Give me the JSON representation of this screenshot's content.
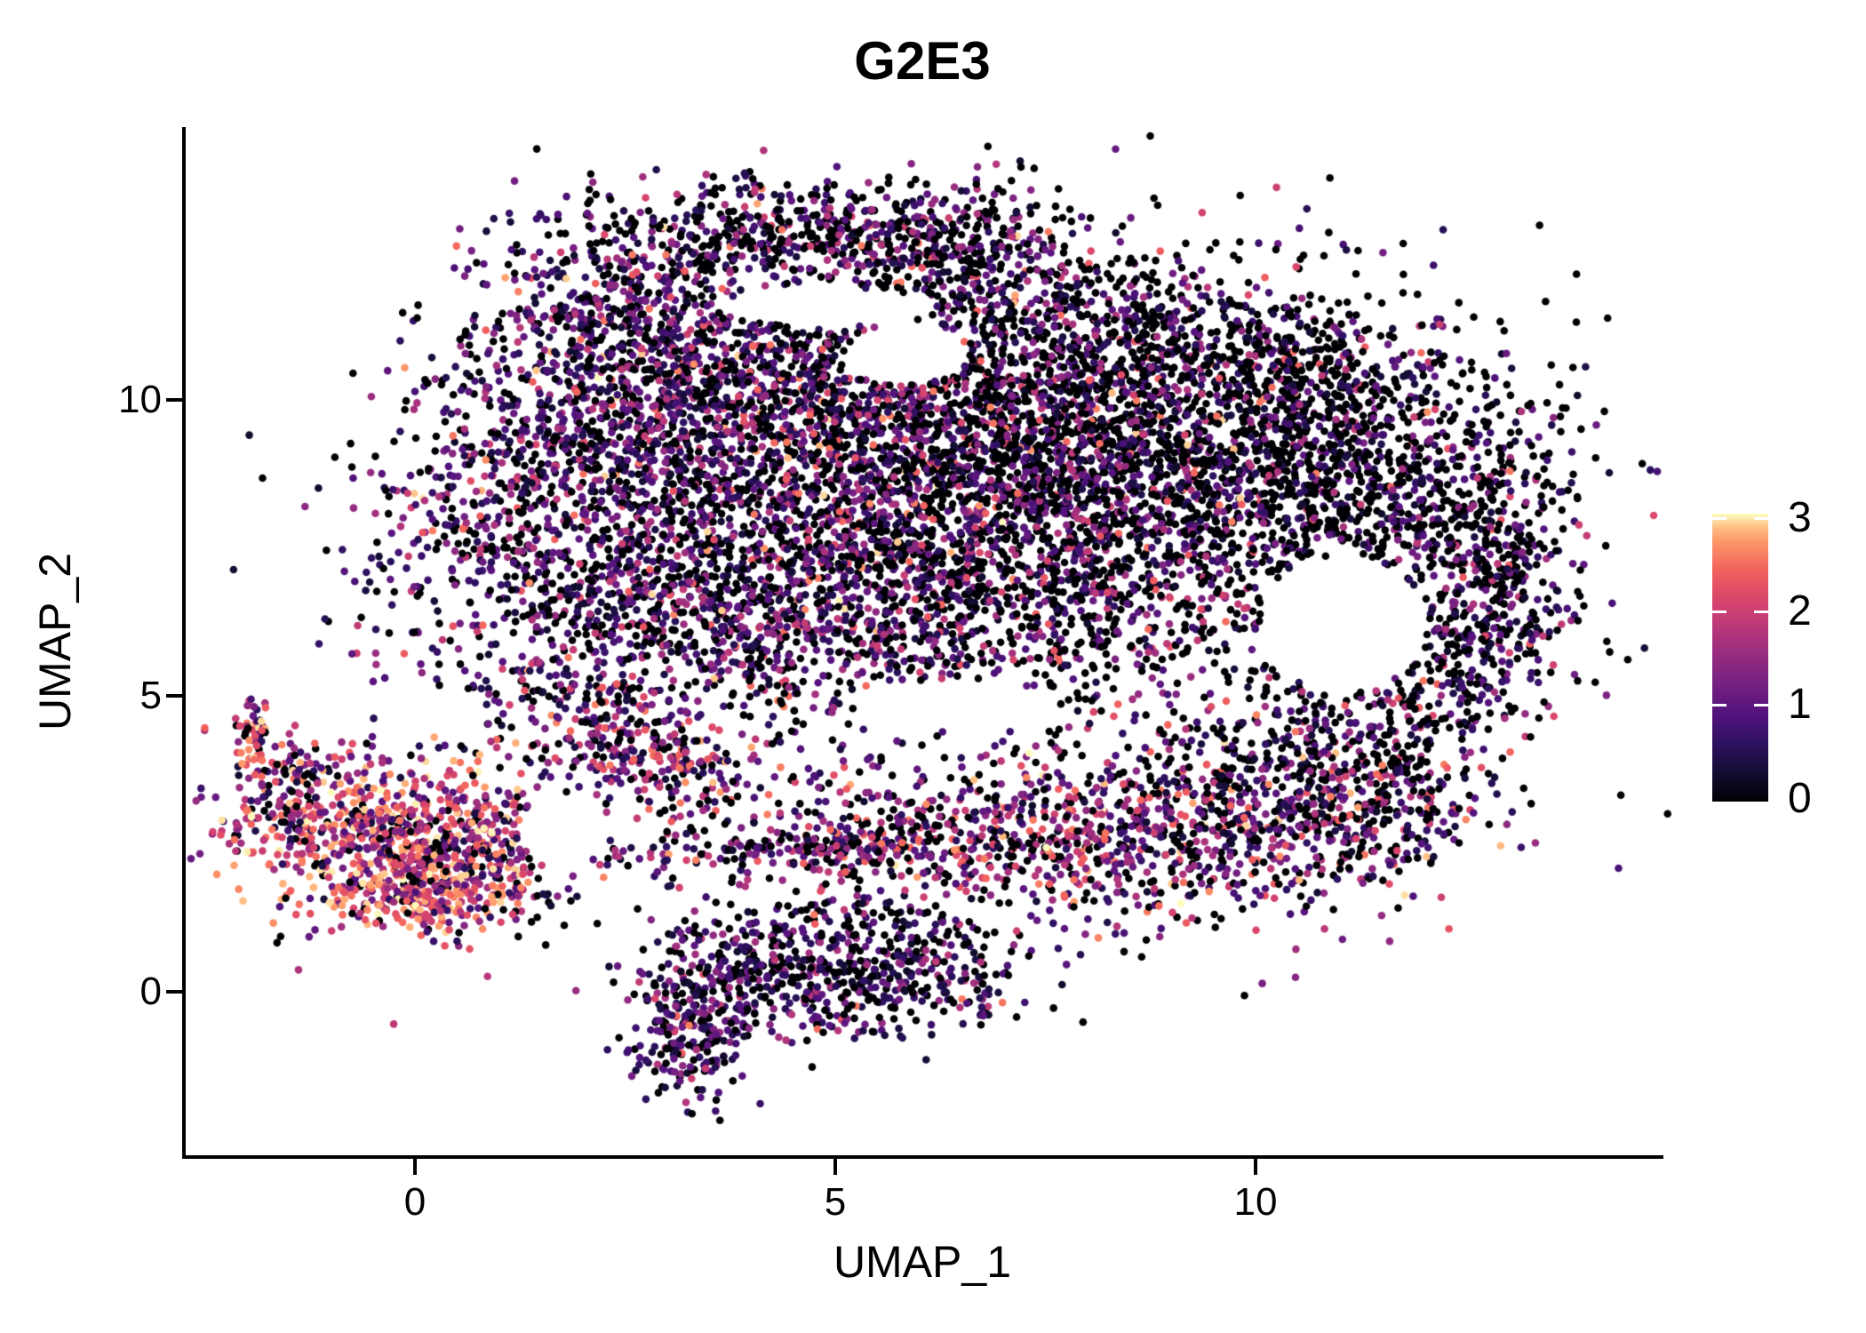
{
  "title": "G2E3",
  "axes": {
    "x": {
      "label": "UMAP_1",
      "tick_labels": [
        "0",
        "5",
        "10"
      ]
    },
    "y": {
      "label": "UMAP_2",
      "tick_labels": [
        "0",
        "5",
        "10"
      ]
    }
  },
  "colorbar": {
    "labels_top_to_bottom": [
      "3",
      "2",
      "1",
      "0"
    ],
    "min_color": "#000004",
    "max_color": "#fcfdbf"
  },
  "chart_data": {
    "type": "scatter",
    "title": "G2E3",
    "xlabel": "UMAP_1",
    "ylabel": "UMAP_2",
    "xlim": [
      -2.75,
      14.85
    ],
    "ylim": [
      -2.8,
      14.6
    ],
    "x_ticks": [
      0,
      5,
      10
    ],
    "y_ticks": [
      0,
      5,
      10
    ],
    "grid": false,
    "legend": "colorbar-right",
    "color_scale": {
      "name": "magma",
      "domain": [
        0,
        3
      ],
      "stops": [
        [
          0.0,
          "#000004"
        ],
        [
          0.1,
          "#120d31"
        ],
        [
          0.2,
          "#2c1160"
        ],
        [
          0.3,
          "#51127c"
        ],
        [
          0.4,
          "#721f81"
        ],
        [
          0.5,
          "#932b80"
        ],
        [
          0.6,
          "#b73779"
        ],
        [
          0.7,
          "#d8456c"
        ],
        [
          0.8,
          "#f1605d"
        ],
        [
          0.9,
          "#fd9567"
        ],
        [
          0.95,
          "#febb81"
        ],
        [
          1.0,
          "#fcfdbf"
        ]
      ]
    },
    "point_radius_px": 4.3,
    "seed": 42,
    "n_points_approx": 14900,
    "value_buckets": [
      {
        "base": 0.0,
        "span": 0.0
      },
      {
        "base": 0.25,
        "span": 0.8
      },
      {
        "base": 1.05,
        "span": 0.85
      },
      {
        "base": 1.9,
        "span": 0.7
      },
      {
        "base": 2.6,
        "span": 0.4
      }
    ],
    "profiles": {
      "dark": [
        0.58,
        0.28,
        0.11,
        0.03,
        0.0
      ],
      "darkmix": [
        0.5,
        0.28,
        0.16,
        0.05,
        0.01
      ],
      "mixed": [
        0.44,
        0.3,
        0.19,
        0.06,
        0.01
      ],
      "purple": [
        0.33,
        0.41,
        0.2,
        0.05,
        0.01
      ],
      "darkpurple": [
        0.4,
        0.42,
        0.15,
        0.03,
        0.0
      ],
      "bandmix": [
        0.27,
        0.26,
        0.28,
        0.16,
        0.03
      ],
      "warm": [
        0.1,
        0.17,
        0.3,
        0.28,
        0.15
      ],
      "hot": [
        0.05,
        0.1,
        0.22,
        0.33,
        0.3
      ]
    },
    "clusters": [
      {
        "cx": 1.8,
        "cy": 8.6,
        "sx": 1.15,
        "sy": 1.4,
        "n": 950,
        "p": "purple"
      },
      {
        "cx": 3.4,
        "cy": 10.5,
        "sx": 1.2,
        "sy": 0.85,
        "n": 650,
        "p": "purple"
      },
      {
        "cx": 4.8,
        "cy": 8.0,
        "sx": 1.45,
        "sy": 1.3,
        "n": 1100,
        "p": "mixed"
      },
      {
        "cx": 5.8,
        "cy": 9.9,
        "sx": 1.5,
        "sy": 1.0,
        "n": 750,
        "p": "mixed"
      },
      {
        "cx": 7.6,
        "cy": 8.9,
        "sx": 1.45,
        "sy": 1.25,
        "n": 1300,
        "p": "darkmix"
      },
      {
        "cx": 9.6,
        "cy": 8.6,
        "sx": 1.25,
        "sy": 1.3,
        "n": 900,
        "p": "dark"
      },
      {
        "cx": 11.4,
        "cy": 8.8,
        "sx": 1.1,
        "sy": 1.2,
        "n": 650,
        "p": "dark"
      },
      {
        "cx": 12.9,
        "cy": 7.0,
        "sx": 0.5,
        "sy": 1.3,
        "n": 380,
        "p": "dark"
      },
      {
        "cx": 4.6,
        "cy": 12.9,
        "sx": 1.5,
        "sy": 0.45,
        "n": 520,
        "p": "darkmix"
      },
      {
        "cx": 2.6,
        "cy": 11.6,
        "sx": 0.8,
        "sy": 0.6,
        "n": 280,
        "p": "purple"
      },
      {
        "cx": 6.4,
        "cy": 12.3,
        "sx": 0.8,
        "sy": 0.5,
        "n": 280,
        "p": "darkmix"
      },
      {
        "cx": 8.0,
        "cy": 11.2,
        "sx": 1.1,
        "sy": 0.65,
        "n": 380,
        "p": "dark"
      },
      {
        "cx": 10.5,
        "cy": 10.6,
        "sx": 0.8,
        "sy": 0.55,
        "n": 240,
        "p": "dark"
      },
      {
        "cx": 3.0,
        "cy": 6.3,
        "sx": 1.6,
        "sy": 0.7,
        "n": 500,
        "p": "purple"
      },
      {
        "cx": 7.0,
        "cy": 6.3,
        "sx": 1.6,
        "sy": 0.8,
        "n": 550,
        "p": "darkmix"
      },
      {
        "cx": 11.9,
        "cy": 5.6,
        "sx": 0.9,
        "sy": 0.9,
        "n": 320,
        "p": "dark"
      },
      {
        "cx": 2.9,
        "cy": 3.9,
        "sx": 0.9,
        "sy": 0.4,
        "n": 200,
        "p": "bandmix",
        "rot": -0.45
      },
      {
        "cx": 4.6,
        "cy": 2.35,
        "sx": 1.6,
        "sy": 0.22,
        "n": 260,
        "p": "bandmix"
      },
      {
        "cx": 6.9,
        "cy": 2.7,
        "sx": 1.2,
        "sy": 0.6,
        "n": 350,
        "p": "bandmix"
      },
      {
        "cx": 9.2,
        "cy": 2.5,
        "sx": 1.2,
        "sy": 0.75,
        "n": 500,
        "p": "bandmix"
      },
      {
        "cx": 10.6,
        "cy": 3.8,
        "sx": 0.9,
        "sy": 0.85,
        "n": 420,
        "p": "mixed"
      },
      {
        "cx": 11.8,
        "cy": 3.2,
        "sx": 0.6,
        "sy": 0.6,
        "n": 180,
        "p": "mixed"
      },
      {
        "cx": -0.45,
        "cy": 2.7,
        "sx": 0.85,
        "sy": 0.7,
        "n": 650,
        "p": "warm"
      },
      {
        "cx": 0.1,
        "cy": 1.7,
        "sx": 0.55,
        "sy": 0.35,
        "n": 260,
        "p": "hot"
      },
      {
        "cx": -1.95,
        "cy": 4.35,
        "sx": 0.12,
        "sy": 0.35,
        "n": 55,
        "p": "warm"
      },
      {
        "cx": -1.55,
        "cy": 3.55,
        "sx": 0.28,
        "sy": 0.4,
        "n": 70,
        "p": "bandmix"
      },
      {
        "cx": 0.95,
        "cy": 2.4,
        "sx": 0.5,
        "sy": 0.5,
        "n": 180,
        "p": "bandmix"
      },
      {
        "cx": 4.5,
        "cy": 0.35,
        "sx": 0.9,
        "sy": 0.5,
        "n": 380,
        "p": "darkpurple"
      },
      {
        "cx": 3.3,
        "cy": -0.7,
        "sx": 0.35,
        "sy": 0.6,
        "n": 230,
        "p": "darkpurple"
      },
      {
        "cx": 5.9,
        "cy": 0.25,
        "sx": 0.75,
        "sy": 0.5,
        "n": 230,
        "p": "darkpurple"
      },
      {
        "cx": 5.2,
        "cy": 1.2,
        "sx": 1.2,
        "sy": 0.35,
        "n": 90,
        "p": "darkpurple"
      },
      {
        "cx": 6.5,
        "cy": 8.8,
        "sx": 3.3,
        "sy": 2.4,
        "n": 520,
        "p": "darkmix"
      },
      {
        "cx": 6.5,
        "cy": 3.6,
        "sx": 2.8,
        "sy": 0.9,
        "n": 200,
        "p": "mixed"
      },
      {
        "cx": 5.0,
        "cy": 5.0,
        "sx": 2.6,
        "sy": 0.5,
        "n": 110,
        "p": "mixed"
      },
      {
        "cx": 2.4,
        "cy": 4.6,
        "sx": 0.6,
        "sy": 0.8,
        "n": 150,
        "p": "bandmix"
      },
      {
        "cx": 6.5,
        "cy": 6.5,
        "sx": 5.0,
        "sy": 4.0,
        "n": 70,
        "p": "mixed"
      }
    ],
    "holes": [
      {
        "cx": 11.05,
        "cy": 6.2,
        "rx": 1.0,
        "ry": 1.15
      },
      {
        "cx": 5.85,
        "cy": 10.75,
        "rx": 0.75,
        "ry": 0.5
      },
      {
        "cx": 4.9,
        "cy": 11.55,
        "rx": 1.3,
        "ry": 0.33
      },
      {
        "cx": 6.4,
        "cy": 4.85,
        "rx": 1.2,
        "ry": 0.42
      },
      {
        "cx": 1.75,
        "cy": 2.7,
        "rx": 0.5,
        "ry": 0.6
      }
    ]
  }
}
